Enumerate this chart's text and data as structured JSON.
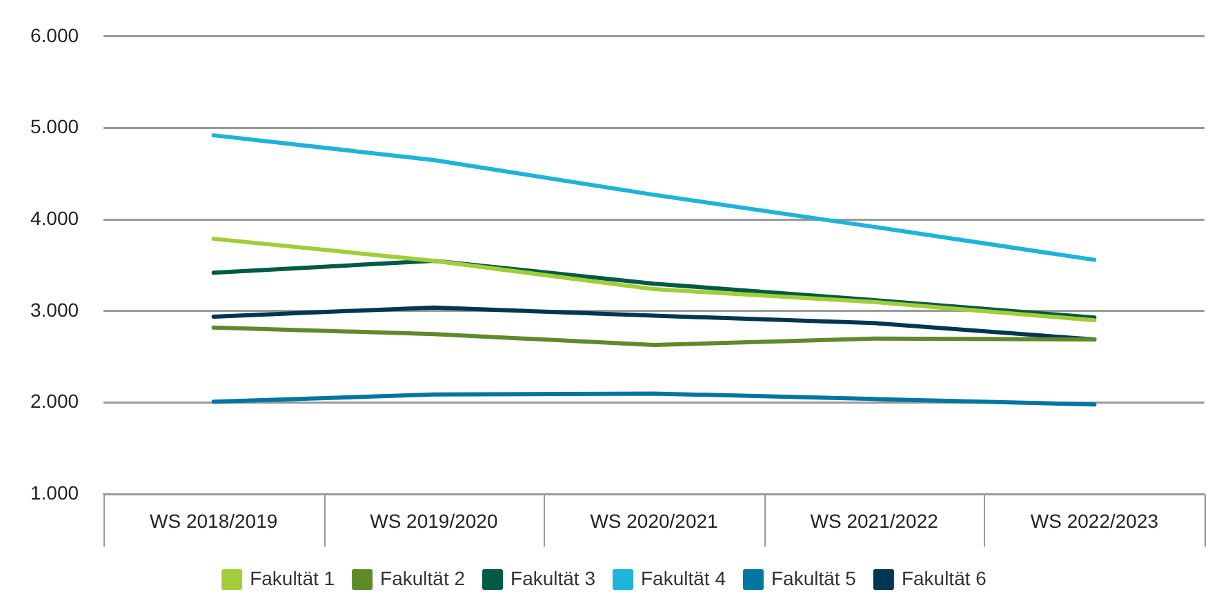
{
  "chart_data": {
    "type": "line",
    "categories": [
      "WS 2018/2019",
      "WS 2019/2020",
      "WS 2020/2021",
      "WS 2021/2022",
      "WS 2022/2023"
    ],
    "series": [
      {
        "name": "Fakultät 1",
        "color": "#a2cd3a",
        "values": [
          3790,
          3550,
          3240,
          3100,
          2900
        ]
      },
      {
        "name": "Fakultät 2",
        "color": "#5f8a2a",
        "values": [
          2820,
          2750,
          2630,
          2700,
          2690
        ]
      },
      {
        "name": "Fakultät 3",
        "color": "#005a45",
        "values": [
          3420,
          3550,
          3300,
          3120,
          2930
        ]
      },
      {
        "name": "Fakultät 4",
        "color": "#1eb4d8",
        "values": [
          4920,
          4650,
          4270,
          3920,
          3560
        ]
      },
      {
        "name": "Fakultät 5",
        "color": "#0076a0",
        "values": [
          2010,
          2090,
          2100,
          2040,
          1980
        ]
      },
      {
        "name": "Fakultät 6",
        "color": "#003651",
        "values": [
          2940,
          3040,
          2950,
          2870,
          2690
        ]
      }
    ],
    "ylim": [
      1000,
      6000
    ],
    "yticks": [
      {
        "value": 1000,
        "label": "1.000"
      },
      {
        "value": 2000,
        "label": "2.000"
      },
      {
        "value": 3000,
        "label": "3.000"
      },
      {
        "value": 4000,
        "label": "4.000"
      },
      {
        "value": 5000,
        "label": "5.000"
      },
      {
        "value": 6000,
        "label": "6.000"
      }
    ],
    "grid": "y",
    "legend": "bottom",
    "marker": "none",
    "line_style": "solid"
  }
}
